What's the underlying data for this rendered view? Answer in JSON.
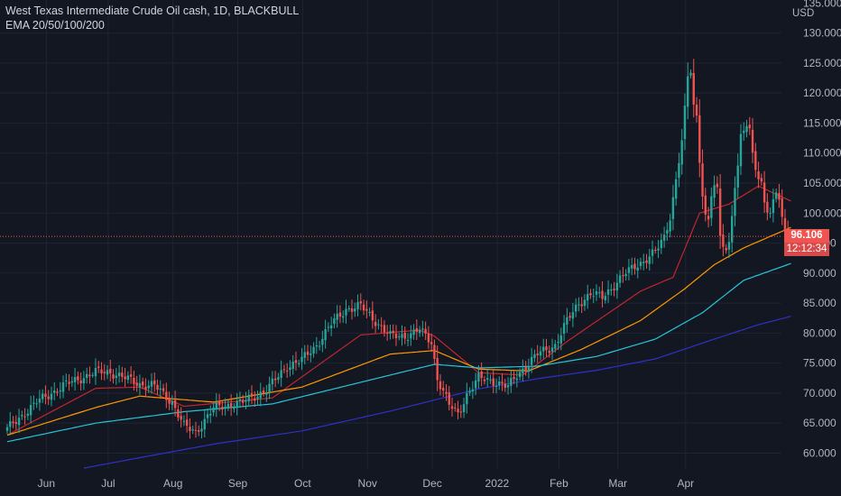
{
  "legend": {
    "title": "West Texas Intermediate Crude Oil cash, 1D, BLACKBULL",
    "indicator": "EMA 20/50/100/200"
  },
  "currency": "USD",
  "last_price": "96.106",
  "countdown": "12:12:34",
  "colors": {
    "background": "#131722",
    "grid": "#1f2433",
    "up": "#26a69a",
    "down": "#ef5350",
    "ema20": "#c2262e",
    "ema50": "#ff9800",
    "ema100": "#26c6da",
    "ema200": "#3030c8",
    "badge": "#f05350",
    "badge_dark": "#d84a4a"
  },
  "chart_data": {
    "type": "candlestick",
    "title": "West Texas Intermediate Crude Oil cash, 1D, BLACKBULL",
    "ylim": [
      57.5,
      135
    ],
    "y_ticks": [
      "60.000",
      "65.000",
      "70.000",
      "75.000",
      "80.000",
      "85.000",
      "90.000",
      "95.000",
      "100.000",
      "105.000",
      "110.000",
      "115.000",
      "120.000",
      "125.000",
      "130.000",
      "135.000"
    ],
    "x_ticks": [
      "Jun",
      "Jul",
      "Aug",
      "Sep",
      "Oct",
      "Nov",
      "Dec",
      "2022",
      "Feb",
      "Mar",
      "Apr"
    ],
    "close_anchors": [
      [
        0,
        64
      ],
      [
        10,
        68.5
      ],
      [
        20,
        71.5
      ],
      [
        30,
        73.5
      ],
      [
        35,
        73.5
      ],
      [
        45,
        71.5
      ],
      [
        50,
        71.2
      ],
      [
        56,
        68.5
      ],
      [
        60,
        64.5
      ],
      [
        64,
        63.5
      ],
      [
        70,
        67.5
      ],
      [
        80,
        68.5
      ],
      [
        88,
        70.5
      ],
      [
        95,
        74.5
      ],
      [
        100,
        75.5
      ],
      [
        105,
        78
      ],
      [
        110,
        81.5
      ],
      [
        115,
        84
      ],
      [
        120,
        84.5
      ],
      [
        125,
        82
      ],
      [
        130,
        79.5
      ],
      [
        135,
        79.5
      ],
      [
        140,
        80.5
      ],
      [
        144,
        78.5
      ],
      [
        146,
        72.5
      ],
      [
        150,
        68
      ],
      [
        153,
        66.5
      ],
      [
        156,
        69.8
      ],
      [
        160,
        72.5
      ],
      [
        165,
        72
      ],
      [
        170,
        71
      ],
      [
        173,
        73
      ],
      [
        180,
        76.5
      ],
      [
        186,
        78
      ],
      [
        190,
        82
      ],
      [
        194,
        85
      ],
      [
        198,
        86.5
      ],
      [
        202,
        86
      ],
      [
        206,
        88
      ],
      [
        210,
        90
      ],
      [
        214,
        91.5
      ],
      [
        216,
        92
      ],
      [
        220,
        93.5
      ],
      [
        223,
        96
      ],
      [
        225,
        99.5
      ],
      [
        227,
        105.5
      ],
      [
        229,
        112
      ],
      [
        230,
        117
      ],
      [
        231,
        122.5
      ],
      [
        232,
        123.8
      ],
      [
        233,
        118
      ],
      [
        234,
        116
      ],
      [
        235,
        109
      ],
      [
        236,
        103.5
      ],
      [
        237,
        99.5
      ],
      [
        238,
        98.5
      ],
      [
        239,
        103
      ],
      [
        240,
        104.5
      ],
      [
        241,
        103.5
      ],
      [
        242,
        96
      ],
      [
        243,
        95
      ],
      [
        244,
        94
      ],
      [
        245,
        95
      ],
      [
        246,
        100
      ],
      [
        247,
        104.8
      ],
      [
        248,
        107.5
      ],
      [
        249,
        112.5
      ],
      [
        250,
        113.8
      ],
      [
        251,
        114.5
      ],
      [
        252,
        113.5
      ],
      [
        253,
        110
      ],
      [
        254,
        108
      ],
      [
        255,
        106
      ],
      [
        256,
        105
      ],
      [
        257,
        102
      ],
      [
        258,
        100.5
      ],
      [
        259,
        99.5
      ],
      [
        260,
        101.5
      ],
      [
        261,
        103.5
      ],
      [
        262,
        102.5
      ],
      [
        263,
        99
      ],
      [
        264,
        97
      ],
      [
        265,
        96.5
      ],
      [
        266,
        96.1
      ]
    ],
    "ema_series": [
      {
        "name": "EMA 20",
        "anchors": [
          [
            0,
            63
          ],
          [
            30,
            70.8
          ],
          [
            45,
            71
          ],
          [
            60,
            67.8
          ],
          [
            90,
            69.2
          ],
          [
            120,
            79.7
          ],
          [
            140,
            80.5
          ],
          [
            145,
            79.5
          ],
          [
            160,
            73.4
          ],
          [
            175,
            73
          ],
          [
            190,
            78.6
          ],
          [
            215,
            87
          ],
          [
            226,
            89.3
          ],
          [
            235,
            100
          ],
          [
            245,
            101.5
          ],
          [
            255,
            104.5
          ],
          [
            266,
            102
          ]
        ]
      },
      {
        "name": "EMA 50",
        "anchors": [
          [
            0,
            63
          ],
          [
            30,
            67.6
          ],
          [
            45,
            69.5
          ],
          [
            70,
            68.5
          ],
          [
            100,
            71
          ],
          [
            130,
            76.5
          ],
          [
            145,
            77.1
          ],
          [
            160,
            74
          ],
          [
            177,
            73.7
          ],
          [
            195,
            77.3
          ],
          [
            215,
            82.1
          ],
          [
            230,
            87.4
          ],
          [
            240,
            91.4
          ],
          [
            250,
            94.2
          ],
          [
            266,
            97.6
          ]
        ]
      },
      {
        "name": "EMA 100",
        "anchors": [
          [
            0,
            61.9
          ],
          [
            30,
            65
          ],
          [
            60,
            66.9
          ],
          [
            90,
            68.2
          ],
          [
            120,
            71.8
          ],
          [
            145,
            74.8
          ],
          [
            160,
            74.2
          ],
          [
            180,
            74.5
          ],
          [
            200,
            76.1
          ],
          [
            220,
            79
          ],
          [
            236,
            83.4
          ],
          [
            250,
            88.8
          ],
          [
            266,
            91.6
          ]
        ]
      },
      {
        "name": "EMA 200",
        "anchors": [
          [
            26,
            57.5
          ],
          [
            50,
            59.7
          ],
          [
            70,
            61.5
          ],
          [
            100,
            63.7
          ],
          [
            130,
            67
          ],
          [
            160,
            70.7
          ],
          [
            180,
            72.4
          ],
          [
            200,
            73.8
          ],
          [
            220,
            75.7
          ],
          [
            240,
            79
          ],
          [
            255,
            81.4
          ],
          [
            266,
            82.8
          ]
        ]
      }
    ]
  }
}
